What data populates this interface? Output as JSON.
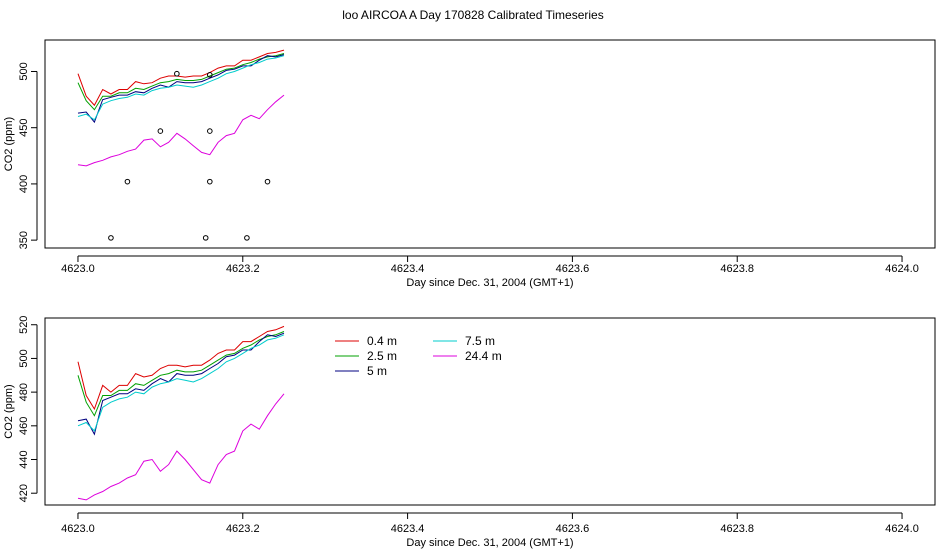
{
  "page_title": "loo AIRCOA A  Day 170828  Calibrated Timeseries",
  "colors": {
    "red": "#dd0000",
    "green": "#00a000",
    "navy": "#000080",
    "cyan": "#00cccc",
    "magenta": "#dd00dd"
  },
  "chart_data": [
    {
      "type": "line",
      "xlabel": "Day since Dec. 31, 2004 (GMT+1)",
      "ylabel": "CO2 (ppm)",
      "xlim": [
        4622.96,
        4624.04
      ],
      "ylim": [
        343,
        528
      ],
      "x_ticks": [
        4623.0,
        4623.2,
        4623.4,
        4623.6,
        4623.8,
        4624.0
      ],
      "x_tick_labels": [
        "4623.0",
        "4623.2",
        "4623.4",
        "4623.6",
        "4623.8",
        "4624.0"
      ],
      "y_ticks": [
        350,
        400,
        450,
        500
      ],
      "y_tick_labels": [
        "350",
        "400",
        "450",
        "500"
      ],
      "x": [
        4623.0,
        4623.01,
        4623.02,
        4623.03,
        4623.04,
        4623.05,
        4623.06,
        4623.07,
        4623.08,
        4623.09,
        4623.1,
        4623.11,
        4623.12,
        4623.13,
        4623.14,
        4623.15,
        4623.16,
        4623.17,
        4623.18,
        4623.19,
        4623.2,
        4623.21,
        4623.22,
        4623.23,
        4623.24,
        4623.25
      ],
      "series": [
        {
          "color": "red",
          "values": [
            498,
            478,
            470,
            484,
            480,
            484,
            484,
            491,
            489,
            490,
            494,
            496,
            496,
            495,
            496,
            496,
            499,
            503,
            505,
            505,
            510,
            510,
            513,
            516,
            517,
            519
          ]
        },
        {
          "color": "green",
          "values": [
            490,
            474,
            466,
            478,
            478,
            481,
            481,
            485,
            484,
            487,
            490,
            491,
            493,
            492,
            492,
            493,
            496,
            499,
            502,
            503,
            506,
            508,
            511,
            513,
            514,
            516
          ]
        },
        {
          "color": "navy",
          "values": [
            463,
            464,
            455,
            475,
            477,
            479,
            479,
            482,
            481,
            485,
            488,
            486,
            491,
            490,
            490,
            491,
            494,
            497,
            501,
            502,
            505,
            505,
            510,
            514,
            513,
            515
          ]
        },
        {
          "color": "cyan",
          "values": [
            460,
            462,
            457,
            471,
            474,
            476,
            477,
            480,
            479,
            483,
            485,
            486,
            488,
            487,
            486,
            488,
            491,
            494,
            498,
            500,
            503,
            506,
            508,
            511,
            512,
            514
          ]
        },
        {
          "color": "magenta",
          "values": [
            417,
            416,
            419,
            421,
            424,
            426,
            429,
            431,
            439,
            440,
            433,
            437,
            445,
            440,
            434,
            428,
            426,
            437,
            443,
            445,
            457,
            461,
            458,
            466,
            473,
            479
          ]
        }
      ],
      "points": [
        {
          "x": 4623.12,
          "y": 498
        },
        {
          "x": 4623.16,
          "y": 497
        },
        {
          "x": 4623.1,
          "y": 447
        },
        {
          "x": 4623.16,
          "y": 447
        },
        {
          "x": 4623.06,
          "y": 402
        },
        {
          "x": 4623.16,
          "y": 402
        },
        {
          "x": 4623.23,
          "y": 402
        },
        {
          "x": 4623.04,
          "y": 352
        },
        {
          "x": 4623.155,
          "y": 352
        },
        {
          "x": 4623.205,
          "y": 352
        }
      ]
    },
    {
      "type": "line",
      "xlabel": "Day since Dec. 31, 2004 (GMT+1)",
      "ylabel": "CO2 (ppm)",
      "xlim": [
        4622.96,
        4624.04
      ],
      "ylim": [
        413,
        524
      ],
      "x_ticks": [
        4623.0,
        4623.2,
        4623.4,
        4623.6,
        4623.8,
        4624.0
      ],
      "x_tick_labels": [
        "4623.0",
        "4623.2",
        "4623.4",
        "4623.6",
        "4623.8",
        "4624.0"
      ],
      "y_ticks": [
        420,
        440,
        460,
        480,
        500,
        520
      ],
      "y_tick_labels": [
        "420",
        "440",
        "460",
        "480",
        "500",
        "520"
      ],
      "legend": {
        "position": "top-left"
      },
      "x": [
        4623.0,
        4623.01,
        4623.02,
        4623.03,
        4623.04,
        4623.05,
        4623.06,
        4623.07,
        4623.08,
        4623.09,
        4623.1,
        4623.11,
        4623.12,
        4623.13,
        4623.14,
        4623.15,
        4623.16,
        4623.17,
        4623.18,
        4623.19,
        4623.2,
        4623.21,
        4623.22,
        4623.23,
        4623.24,
        4623.25
      ],
      "series": [
        {
          "name": "0.4 m",
          "color": "red",
          "values": [
            498,
            478,
            470,
            484,
            480,
            484,
            484,
            491,
            489,
            490,
            494,
            496,
            496,
            495,
            496,
            496,
            499,
            503,
            505,
            505,
            510,
            510,
            513,
            516,
            517,
            519
          ]
        },
        {
          "name": "2.5 m",
          "color": "green",
          "values": [
            490,
            474,
            466,
            478,
            478,
            481,
            481,
            485,
            484,
            487,
            490,
            491,
            493,
            492,
            492,
            493,
            496,
            499,
            502,
            503,
            506,
            508,
            511,
            513,
            514,
            516
          ]
        },
        {
          "name": "5 m",
          "color": "navy",
          "values": [
            463,
            464,
            455,
            475,
            477,
            479,
            479,
            482,
            481,
            485,
            488,
            486,
            491,
            490,
            490,
            491,
            494,
            497,
            501,
            502,
            505,
            505,
            510,
            514,
            513,
            515
          ]
        },
        {
          "name": "7.5 m",
          "color": "cyan",
          "values": [
            460,
            462,
            457,
            471,
            474,
            476,
            477,
            480,
            479,
            483,
            485,
            486,
            488,
            487,
            486,
            488,
            491,
            494,
            498,
            500,
            503,
            506,
            508,
            511,
            512,
            514
          ]
        },
        {
          "name": "24.4 m",
          "color": "magenta",
          "values": [
            417,
            416,
            419,
            421,
            424,
            426,
            429,
            431,
            439,
            440,
            433,
            437,
            445,
            440,
            434,
            428,
            426,
            437,
            443,
            445,
            457,
            461,
            458,
            466,
            473,
            479
          ]
        }
      ]
    }
  ]
}
